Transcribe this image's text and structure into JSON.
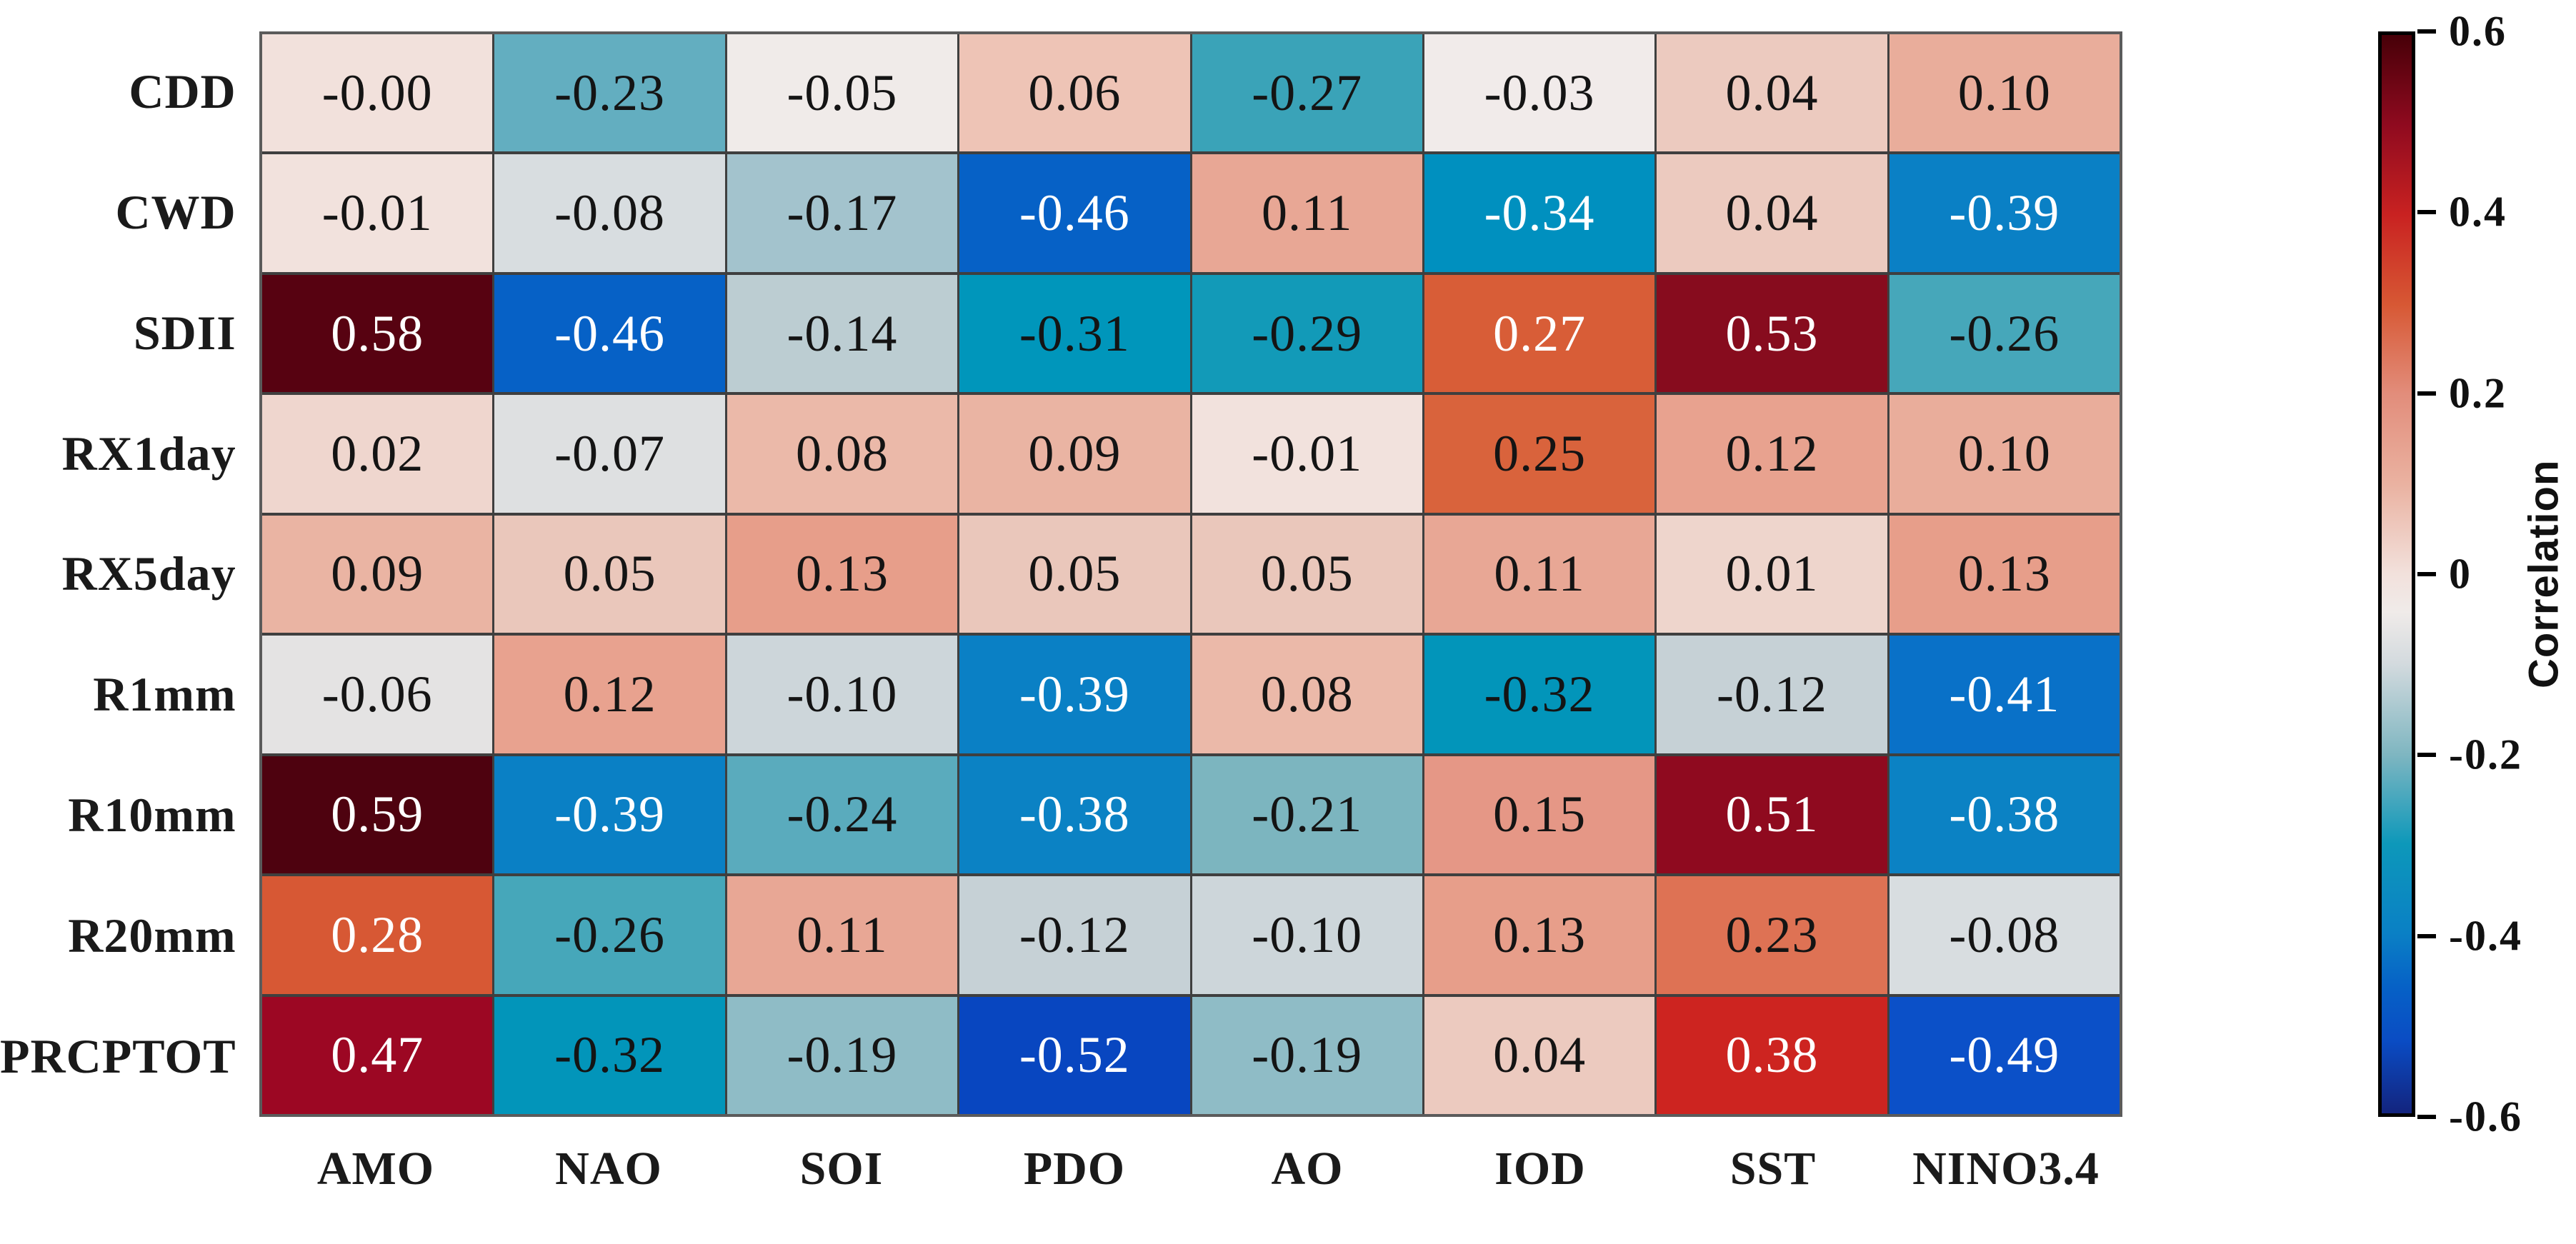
{
  "figure": {
    "title_fragment": "..",
    "background": "#ffffff"
  },
  "chart_data": {
    "type": "heatmap",
    "title": "",
    "xlabel": "",
    "ylabel": "",
    "rows": [
      "CDD",
      "CWD",
      "SDII",
      "RX1day",
      "RX5day",
      "R1mm",
      "R10mm",
      "R20mm",
      "PRCPTOT"
    ],
    "columns": [
      "AMO",
      "NAO",
      "SOI",
      "PDO",
      "AO",
      "IOD",
      "SST",
      "NINO3.4"
    ],
    "values": [
      [
        "-0.00",
        "-0.23",
        "-0.05",
        "0.06",
        "-0.27",
        "-0.03",
        "0.04",
        "0.10"
      ],
      [
        "-0.01",
        "-0.08",
        "-0.17",
        "-0.46",
        "0.11",
        "-0.34",
        "0.04",
        "-0.39"
      ],
      [
        "0.58",
        "-0.46",
        "-0.14",
        "-0.31",
        "-0.29",
        "0.27",
        "0.53",
        "-0.26"
      ],
      [
        "0.02",
        "-0.07",
        "0.08",
        "0.09",
        "-0.01",
        "0.25",
        "0.12",
        "0.10"
      ],
      [
        "0.09",
        "0.05",
        "0.13",
        "0.05",
        "0.05",
        "0.11",
        "0.01",
        "0.13"
      ],
      [
        "-0.06",
        "0.12",
        "-0.10",
        "-0.39",
        "0.08",
        "-0.32",
        "-0.12",
        "-0.41"
      ],
      [
        "0.59",
        "-0.39",
        "-0.24",
        "-0.38",
        "-0.21",
        "0.15",
        "0.51",
        "-0.38"
      ],
      [
        "0.28",
        "-0.26",
        "0.11",
        "-0.12",
        "-0.10",
        "0.13",
        "0.23",
        "-0.08"
      ],
      [
        "0.47",
        "-0.32",
        "-0.19",
        "-0.52",
        "-0.19",
        "0.04",
        "0.38",
        "-0.49"
      ]
    ],
    "value_colors": {
      "-0.52": "#0846c0",
      "-0.49": "#0b50c8",
      "-0.46": "#0661c6",
      "-0.41": "#0971c8",
      "-0.39": "#0a80c5",
      "-0.38": "#0b82c4",
      "-0.34": "#0090bf",
      "-0.32": "#0295ba",
      "-0.31": "#0096bb",
      "-0.29": "#129ab8",
      "-0.27": "#3aa3b8",
      "-0.26": "#46a7ba",
      "-0.24": "#5aabbd",
      "-0.23": "#63aec0",
      "-0.21": "#7cb5bf",
      "-0.19": "#8fbcc6",
      "-0.17": "#a3c3cd",
      "-0.14": "#bccdd2",
      "-0.12": "#c6d1d6",
      "-0.10": "#cdd6da",
      "-0.08": "#d8dde0",
      "-0.07": "#dee0e1",
      "-0.06": "#e4e3e3",
      "-0.05": "#f0ebe9",
      "-0.03": "#f1ebea",
      "-0.01": "#f2e2dd",
      "-0.00": "#f2e1dc",
      "0.01": "#eed5cc",
      "0.02": "#efd6ce",
      "0.04": "#eccabf",
      "0.05": "#eac7bb",
      "0.06": "#eec4b6",
      "0.08": "#ebb9a9",
      "0.09": "#eab4a3",
      "0.10": "#e9ad9b",
      "0.11": "#e8a795",
      "0.12": "#e8a28f",
      "0.13": "#e79e8a",
      "0.15": "#e59786",
      "0.23": "#de7254",
      "0.25": "#d9633c",
      "0.27": "#d85d37",
      "0.28": "#d75834",
      "0.38": "#cd2420",
      "0.47": "#9c0723",
      "0.51": "#8f0a1f",
      "0.53": "#870c1e",
      "0.58": "#570211",
      "0.59": "#4e020f"
    },
    "text_colors": {
      "dark": "#141414",
      "light": "#ffffff"
    },
    "text_light_rule": {
      "positive_min": 0.27,
      "negative_max": -0.34
    },
    "grid_line_color": "#3f3f3f",
    "colorbar": {
      "label": "Correlation",
      "min": -0.6,
      "max": 0.6,
      "ticks": [
        "0.6",
        "0.4",
        "0.2",
        "0",
        "-0.2",
        "-0.4",
        "-0.6"
      ],
      "gradient_stops": [
        [
          "0%",
          "#470008"
        ],
        [
          "8.3%",
          "#8f0a1f"
        ],
        [
          "16.7%",
          "#c92221"
        ],
        [
          "25%",
          "#d75834"
        ],
        [
          "33.3%",
          "#e28d7b"
        ],
        [
          "41.7%",
          "#eab2a1"
        ],
        [
          "50%",
          "#f2e1dc"
        ],
        [
          "53.5%",
          "#f0ebe9"
        ],
        [
          "58.3%",
          "#d3dade"
        ],
        [
          "66.7%",
          "#7fb6c1"
        ],
        [
          "75%",
          "#0d98ba"
        ],
        [
          "83.3%",
          "#0a80c5"
        ],
        [
          "88.3%",
          "#0661c6"
        ],
        [
          "93.3%",
          "#0a4cc4"
        ],
        [
          "100%",
          "#13247e"
        ]
      ]
    }
  }
}
